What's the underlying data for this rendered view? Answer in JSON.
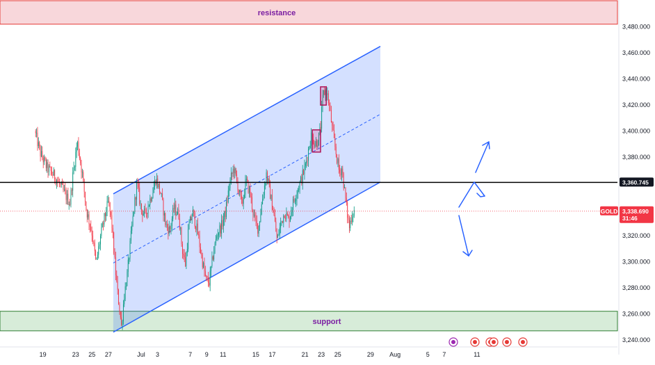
{
  "chart_data": {
    "type": "candlestick",
    "symbol_label": "GOLD",
    "last_price": "3,338.690",
    "countdown": "31:46",
    "level_price": "3,360.745",
    "zones": {
      "resistance": {
        "label": "resistance",
        "low": 3482,
        "high": 3500
      },
      "support": {
        "label": "support",
        "low": 3247,
        "high": 3262
      }
    },
    "horizontal_level": 3360.745,
    "current_price": 3338.69,
    "y_ticks": [
      {
        "value": 3480,
        "label": "3,480.000"
      },
      {
        "value": 3460,
        "label": "3,460.000"
      },
      {
        "value": 3440,
        "label": "3,440.000"
      },
      {
        "value": 3420,
        "label": "3,420.000"
      },
      {
        "value": 3400,
        "label": "3,400.000"
      },
      {
        "value": 3380,
        "label": "3,380.000"
      },
      {
        "value": 3320,
        "label": "3,320.000"
      },
      {
        "value": 3300,
        "label": "3,300.000"
      },
      {
        "value": 3280,
        "label": "3,280.000"
      },
      {
        "value": 3260,
        "label": "3,260.000"
      },
      {
        "value": 3240,
        "label": "3,240.000"
      }
    ],
    "x_ticks": [
      {
        "label": "19",
        "day": -12
      },
      {
        "label": "23",
        "day": -8
      },
      {
        "label": "25",
        "day": -6
      },
      {
        "label": "27",
        "day": -4
      },
      {
        "label": "Jul",
        "day": 0
      },
      {
        "label": "3",
        "day": 2
      },
      {
        "label": "7",
        "day": 6
      },
      {
        "label": "9",
        "day": 8
      },
      {
        "label": "11",
        "day": 10
      },
      {
        "label": "15",
        "day": 14
      },
      {
        "label": "17",
        "day": 16
      },
      {
        "label": "21",
        "day": 20
      },
      {
        "label": "23",
        "day": 22
      },
      {
        "label": "25",
        "day": 24
      },
      {
        "label": "29",
        "day": 28
      },
      {
        "label": "Aug",
        "day": 31
      },
      {
        "label": "5",
        "day": 35
      },
      {
        "label": "7",
        "day": 37
      },
      {
        "label": "11",
        "day": 41
      }
    ],
    "channel": {
      "lower": [
        [
          -3.4,
          3246
        ],
        [
          29.2,
          3361
        ]
      ],
      "upper": [
        [
          -3.4,
          3352
        ],
        [
          29.2,
          3465
        ]
      ],
      "mid": [
        [
          -3.4,
          3299
        ],
        [
          29.2,
          3413
        ]
      ]
    },
    "boxes": [
      {
        "day0": 20.9,
        "day1": 21.9,
        "low": 3384,
        "high": 3401
      },
      {
        "day0": 21.9,
        "day1": 22.6,
        "low": 3420,
        "high": 3434
      }
    ],
    "price_path": [
      [
        -13,
        3400
      ],
      [
        -12.3,
        3383
      ],
      [
        -11.5,
        3372
      ],
      [
        -10.5,
        3365
      ],
      [
        -9.6,
        3355
      ],
      [
        -8.7,
        3345
      ],
      [
        -8.3,
        3368
      ],
      [
        -7.8,
        3392
      ],
      [
        -7.2,
        3368
      ],
      [
        -6.7,
        3340
      ],
      [
        -6.0,
        3322
      ],
      [
        -5.5,
        3298
      ],
      [
        -5.0,
        3318
      ],
      [
        -4.5,
        3333
      ],
      [
        -4.0,
        3346
      ],
      [
        -3.6,
        3330
      ],
      [
        -3.2,
        3298
      ],
      [
        -2.9,
        3277
      ],
      [
        -2.6,
        3262
      ],
      [
        -2.4,
        3250
      ],
      [
        -2.1,
        3273
      ],
      [
        -1.7,
        3290
      ],
      [
        -1.3,
        3316
      ],
      [
        -0.9,
        3340
      ],
      [
        -0.5,
        3360
      ],
      [
        0.0,
        3340
      ],
      [
        0.5,
        3336
      ],
      [
        1.0,
        3346
      ],
      [
        1.5,
        3356
      ],
      [
        1.8,
        3364
      ],
      [
        2.4,
        3352
      ],
      [
        3.0,
        3328
      ],
      [
        3.5,
        3324
      ],
      [
        4.0,
        3341
      ],
      [
        4.6,
        3336
      ],
      [
        5.0,
        3310
      ],
      [
        5.4,
        3298
      ],
      [
        5.8,
        3326
      ],
      [
        6.3,
        3338
      ],
      [
        6.9,
        3322
      ],
      [
        7.4,
        3303
      ],
      [
        7.9,
        3286
      ],
      [
        8.3,
        3284
      ],
      [
        8.8,
        3306
      ],
      [
        9.3,
        3322
      ],
      [
        9.8,
        3327
      ],
      [
        10.3,
        3338
      ],
      [
        10.8,
        3360
      ],
      [
        11.3,
        3372
      ],
      [
        11.8,
        3358
      ],
      [
        12.3,
        3343
      ],
      [
        12.8,
        3362
      ],
      [
        13.3,
        3352
      ],
      [
        13.8,
        3333
      ],
      [
        14.3,
        3325
      ],
      [
        14.8,
        3348
      ],
      [
        15.3,
        3368
      ],
      [
        15.8,
        3350
      ],
      [
        16.2,
        3336
      ],
      [
        16.6,
        3316
      ],
      [
        17.0,
        3328
      ],
      [
        17.5,
        3338
      ],
      [
        18.0,
        3332
      ],
      [
        18.5,
        3344
      ],
      [
        19.0,
        3354
      ],
      [
        19.5,
        3362
      ],
      [
        20.0,
        3372
      ],
      [
        20.4,
        3385
      ],
      [
        20.8,
        3398
      ],
      [
        21.2,
        3390
      ],
      [
        21.6,
        3393
      ],
      [
        21.9,
        3402
      ],
      [
        22.2,
        3428
      ],
      [
        22.6,
        3432
      ],
      [
        23.0,
        3418
      ],
      [
        23.4,
        3398
      ],
      [
        23.8,
        3383
      ],
      [
        24.2,
        3368
      ],
      [
        24.5,
        3372
      ],
      [
        24.8,
        3356
      ],
      [
        25.1,
        3340
      ],
      [
        25.4,
        3326
      ],
      [
        25.7,
        3336
      ],
      [
        26.0,
        3339
      ]
    ]
  }
}
